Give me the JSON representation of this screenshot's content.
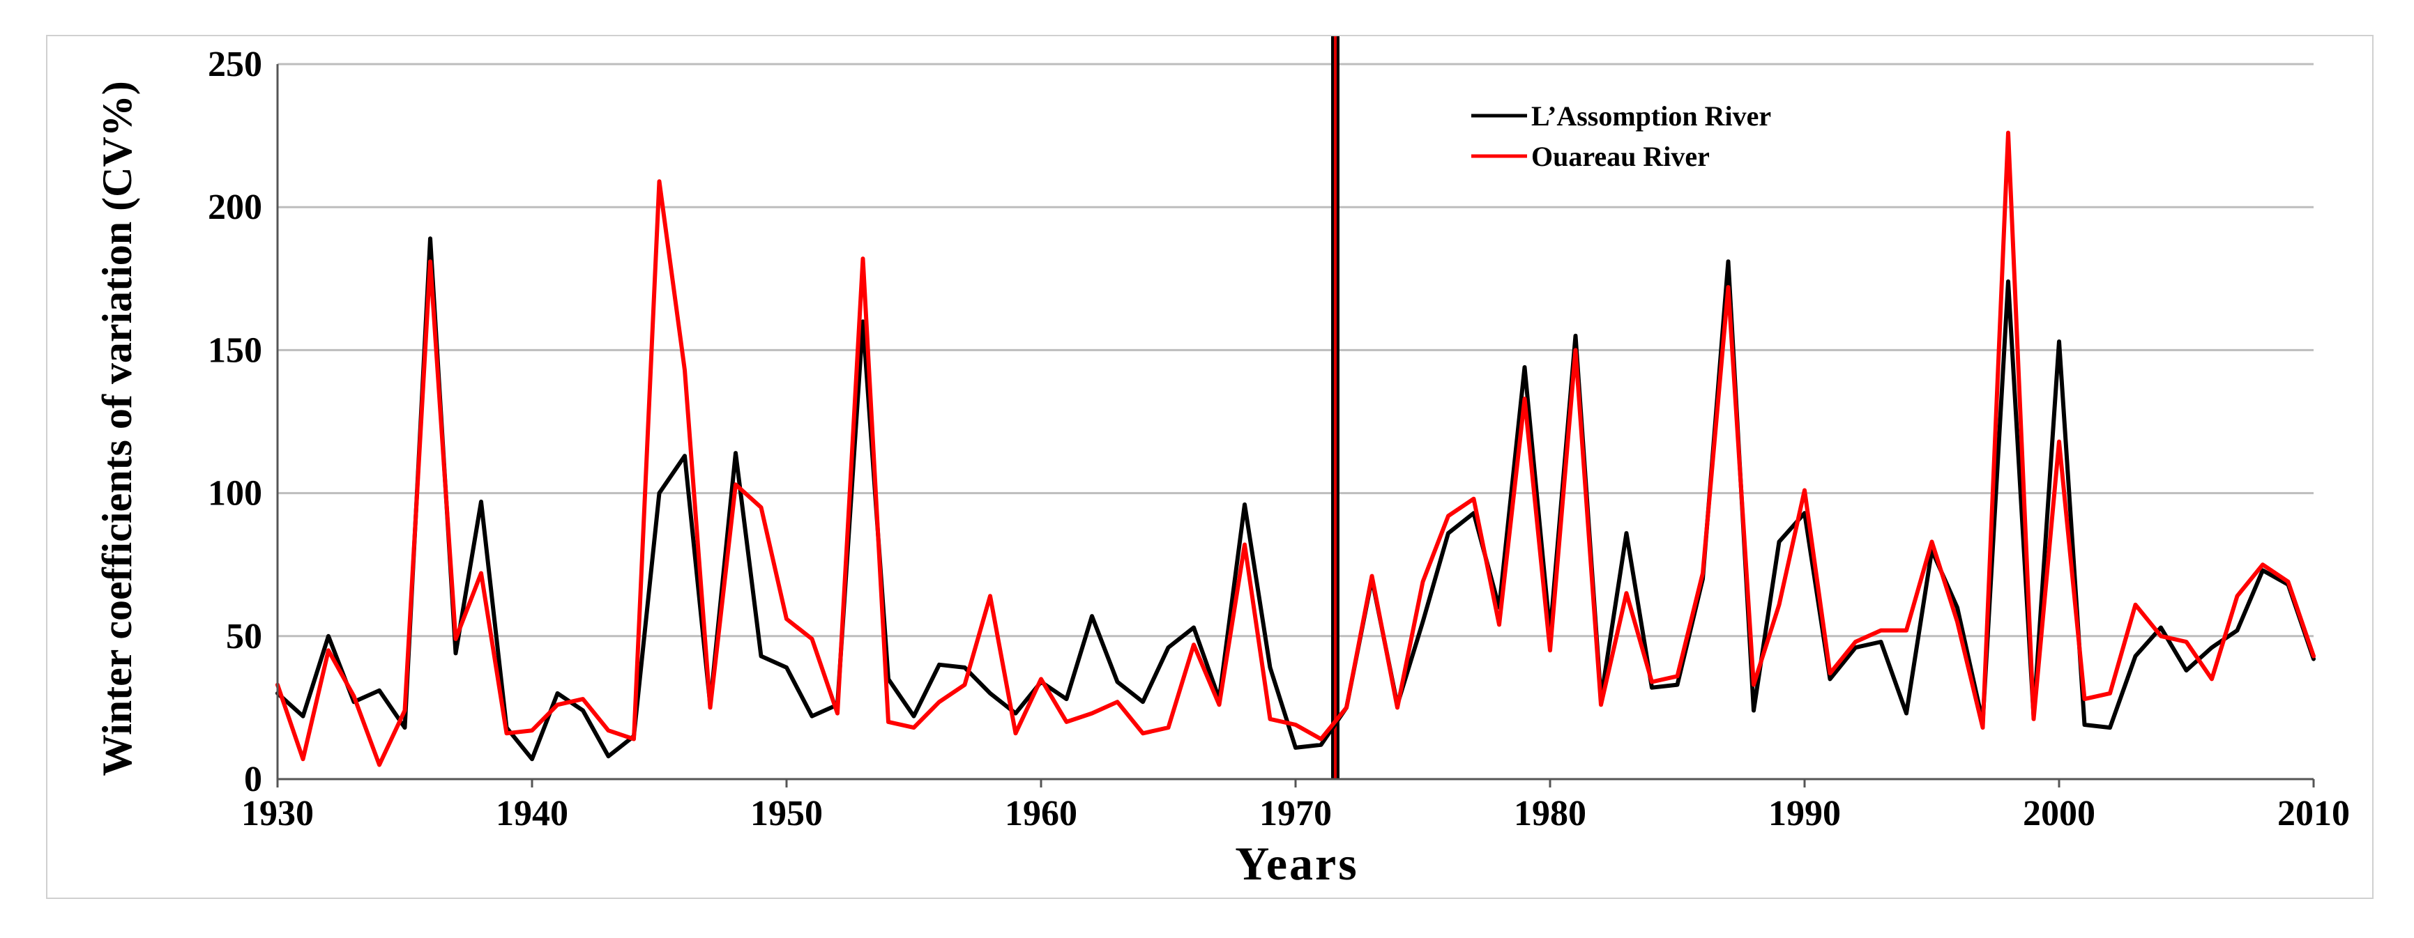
{
  "chart_data": {
    "type": "line",
    "title": "",
    "xlabel": "Years",
    "ylabel": "Winter coefficients of variation (CV%)",
    "xlim": [
      1930,
      2010
    ],
    "ylim": [
      0,
      250
    ],
    "x_ticks": [
      "1930",
      "1940",
      "1950",
      "1960",
      "1970",
      "1980",
      "1990",
      "2000",
      "2010"
    ],
    "y_ticks": [
      "0",
      "50",
      "100",
      "150",
      "200",
      "250"
    ],
    "grid": true,
    "legend_position": "top-right",
    "vertical_marker_year": 1972,
    "series": [
      {
        "name": "L’Assomption River",
        "color": "#000000",
        "x": [
          1930,
          1931,
          1932,
          1933,
          1934,
          1935,
          1936,
          1937,
          1938,
          1939,
          1940,
          1941,
          1942,
          1943,
          1944,
          1945,
          1946,
          1947,
          1948,
          1949,
          1950,
          1951,
          1952,
          1953,
          1954,
          1955,
          1956,
          1957,
          1958,
          1959,
          1960,
          1961,
          1962,
          1963,
          1964,
          1965,
          1966,
          1967,
          1968,
          1969,
          1970,
          1971,
          1972,
          1973,
          1974,
          1975,
          1976,
          1977,
          1978,
          1979,
          1980,
          1981,
          1982,
          1983,
          1984,
          1985,
          1986,
          1987,
          1988,
          1989,
          1990,
          1991,
          1992,
          1993,
          1994,
          1995,
          1996,
          1997,
          1998,
          1999,
          2000,
          2001,
          2002,
          2003,
          2004,
          2005,
          2006,
          2007,
          2008,
          2009,
          2010
        ],
        "values": [
          30,
          22,
          50,
          27,
          31,
          18,
          189,
          44,
          97,
          18,
          7,
          30,
          24,
          8,
          15,
          100,
          113,
          26,
          114,
          43,
          39,
          22,
          26,
          160,
          35,
          22,
          40,
          39,
          30,
          23,
          34,
          28,
          57,
          34,
          27,
          46,
          53,
          28,
          96,
          39,
          11,
          12,
          25,
          70,
          26,
          55,
          86,
          93,
          60,
          144,
          51,
          155,
          28,
          86,
          32,
          33,
          70,
          181,
          24,
          83,
          93,
          35,
          46,
          48,
          23,
          80,
          60,
          20,
          174,
          22,
          153,
          19,
          18,
          43,
          53,
          38,
          46,
          52,
          73,
          68,
          42
        ]
      },
      {
        "name": "Ouareau River",
        "color": "#ff0000",
        "x": [
          1930,
          1931,
          1932,
          1933,
          1934,
          1935,
          1936,
          1937,
          1938,
          1939,
          1940,
          1941,
          1942,
          1943,
          1944,
          1945,
          1946,
          1947,
          1948,
          1949,
          1950,
          1951,
          1952,
          1953,
          1954,
          1955,
          1956,
          1957,
          1958,
          1959,
          1960,
          1961,
          1962,
          1963,
          1964,
          1965,
          1966,
          1967,
          1968,
          1969,
          1970,
          1971,
          1972,
          1973,
          1974,
          1975,
          1976,
          1977,
          1978,
          1979,
          1980,
          1981,
          1982,
          1983,
          1984,
          1985,
          1986,
          1987,
          1988,
          1989,
          1990,
          1991,
          1992,
          1993,
          1994,
          1995,
          1996,
          1997,
          1998,
          1999,
          2000,
          2001,
          2002,
          2003,
          2004,
          2005,
          2006,
          2007,
          2008,
          2009,
          2010
        ],
        "values": [
          33,
          7,
          45,
          29,
          5,
          24,
          181,
          49,
          72,
          16,
          17,
          26,
          28,
          17,
          14,
          209,
          143,
          25,
          103,
          95,
          56,
          49,
          23,
          182,
          20,
          18,
          27,
          33,
          64,
          16,
          35,
          20,
          23,
          27,
          16,
          18,
          47,
          26,
          82,
          21,
          19,
          14,
          25,
          71,
          25,
          69,
          92,
          98,
          54,
          133,
          45,
          150,
          26,
          65,
          34,
          36,
          72,
          172,
          33,
          61,
          101,
          37,
          48,
          52,
          52,
          83,
          55,
          18,
          226,
          21,
          118,
          28,
          30,
          61,
          50,
          48,
          35,
          64,
          75,
          69,
          43
        ]
      }
    ]
  }
}
